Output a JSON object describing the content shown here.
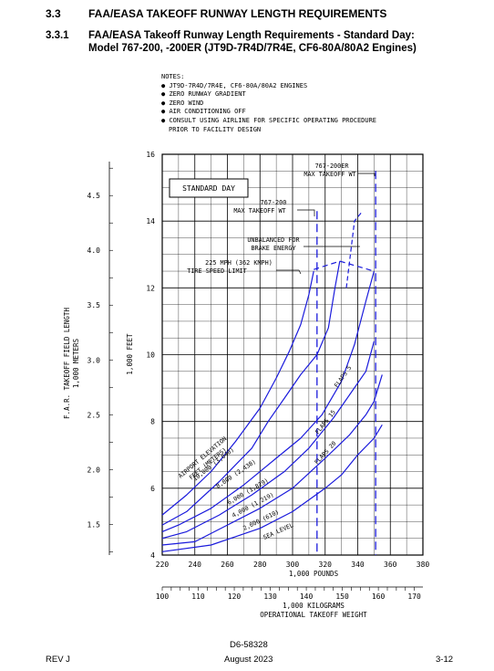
{
  "header": {
    "section_number": "3.3",
    "section_title": "FAA/EASA TAKEOFF RUNWAY LENGTH REQUIREMENTS",
    "subsection_number": "3.3.1",
    "subsection_title_line1": "FAA/EASA Takeoff Runway Length Requirements - Standard Day:",
    "subsection_title_line2": "Model 767-200, -200ER (JT9D-7R4D/7R4E, CF6-80A/80A2 Engines)"
  },
  "notes": {
    "title": "NOTES:",
    "items": [
      "JT9D-7R4D/7R4E, CF6-80A/80A2 ENGINES",
      "ZERO RUNWAY GRADIENT",
      "ZERO WIND",
      "AIR CONDITIONING OFF",
      "CONSULT USING AIRLINE FOR SPECIFIC OPERATING PROCEDURE"
    ],
    "continuation": "PRIOR TO FACILITY DESIGN"
  },
  "chart_data": {
    "type": "line",
    "condition_box": "STANDARD DAY",
    "x_pounds": {
      "ticks": [
        "220",
        "240",
        "260",
        "280",
        "300",
        "320",
        "340",
        "360",
        "380"
      ],
      "range": [
        220,
        380
      ],
      "label": "1,000 POUNDS"
    },
    "x_kilograms": {
      "ticks": [
        "100",
        "110",
        "120",
        "130",
        "140",
        "150",
        "160",
        "170"
      ],
      "range": [
        100,
        172.37
      ],
      "label_line1": "1,000 KILOGRAMS",
      "label_line2": "OPERATIONAL TAKEOFF WEIGHT"
    },
    "y_feet": {
      "ticks": [
        "4",
        "6",
        "8",
        "10",
        "12",
        "14",
        "16"
      ],
      "range": [
        4,
        16
      ],
      "label": "1,000 FEET"
    },
    "y_meters": {
      "ticks": [
        "1.5",
        "2.0",
        "2.5",
        "3.0",
        "3.5",
        "4.0",
        "4.5"
      ],
      "label_line1": "F.A.R. TAKEOFF FIELD LENGTH",
      "label_line2": "1,000 METERS"
    },
    "series": [
      {
        "name": "SEA LEVEL",
        "points": [
          [
            220,
            4.1
          ],
          [
            250,
            4.3
          ],
          [
            280,
            4.8
          ],
          [
            300,
            5.3
          ],
          [
            320,
            6.0
          ],
          [
            330,
            6.4
          ],
          [
            340,
            7.0
          ],
          [
            350,
            7.5
          ],
          [
            355,
            7.9
          ]
        ]
      },
      {
        "name": "2,000 (610)",
        "points": [
          [
            220,
            4.3
          ],
          [
            240,
            4.4
          ],
          [
            260,
            4.9
          ],
          [
            280,
            5.4
          ],
          [
            300,
            6.0
          ],
          [
            320,
            6.9
          ],
          [
            335,
            7.6
          ],
          [
            345,
            8.2
          ],
          [
            350,
            8.6
          ],
          [
            355,
            9.4
          ]
        ]
      },
      {
        "name": "4,000 (1,219)",
        "points": [
          [
            220,
            4.5
          ],
          [
            235,
            4.7
          ],
          [
            255,
            5.2
          ],
          [
            275,
            5.8
          ],
          [
            295,
            6.5
          ],
          [
            310,
            7.2
          ],
          [
            325,
            8.1
          ],
          [
            335,
            8.8
          ],
          [
            345,
            9.5
          ],
          [
            350,
            10.4
          ]
        ]
      },
      {
        "name": "6,000 (1,829)",
        "points": [
          [
            220,
            4.7
          ],
          [
            230,
            4.9
          ],
          [
            250,
            5.4
          ],
          [
            270,
            6.1
          ],
          [
            290,
            6.9
          ],
          [
            305,
            7.5
          ],
          [
            318,
            8.2
          ],
          [
            330,
            9.2
          ],
          [
            338,
            10.3
          ],
          [
            345,
            11.6
          ],
          [
            350,
            12.5
          ]
        ]
      },
      {
        "name": "8,000 (2,438)",
        "points": [
          [
            220,
            4.9
          ],
          [
            235,
            5.3
          ],
          [
            255,
            6.2
          ],
          [
            275,
            7.2
          ],
          [
            285,
            8.0
          ],
          [
            295,
            8.7
          ],
          [
            305,
            9.4
          ],
          [
            315,
            10.0
          ],
          [
            322,
            10.8
          ],
          [
            326,
            12.0
          ],
          [
            329,
            12.8
          ]
        ]
      },
      {
        "name": "10,000 (3,048)",
        "points": [
          [
            220,
            5.2
          ],
          [
            235,
            5.8
          ],
          [
            250,
            6.5
          ],
          [
            265,
            7.4
          ],
          [
            280,
            8.4
          ],
          [
            290,
            9.3
          ],
          [
            298,
            10.1
          ],
          [
            305,
            10.9
          ],
          [
            310,
            11.8
          ],
          [
            313,
            12.5
          ]
        ]
      }
    ],
    "series_labels": {
      "airport_elevation": [
        "AIRPORT ELEVATION",
        "FEET (METERS)"
      ],
      "flaps": [
        "FLAPS 5",
        "FLAPS 15",
        "FLAPS 20"
      ]
    },
    "annotations": {
      "max_wt_200er": [
        "767-200ER",
        "MAX TAKEOFF WT"
      ],
      "max_wt_200": [
        "767-200",
        "MAX TAKEOFF WT"
      ],
      "unbalanced": [
        "UNBALANCED FOR",
        "BRAKE ENERGY"
      ],
      "tire_speed": [
        "225 MPH (362 KMPH)",
        "TIRE SPEED LIMIT"
      ]
    },
    "max_takeoff_weight_lines": {
      "767-200": 315,
      "767-200ER": 351
    }
  },
  "footer": {
    "doc_number": "D6-58328",
    "revision": "REV J",
    "date": "August 2023",
    "page": "3-12"
  }
}
